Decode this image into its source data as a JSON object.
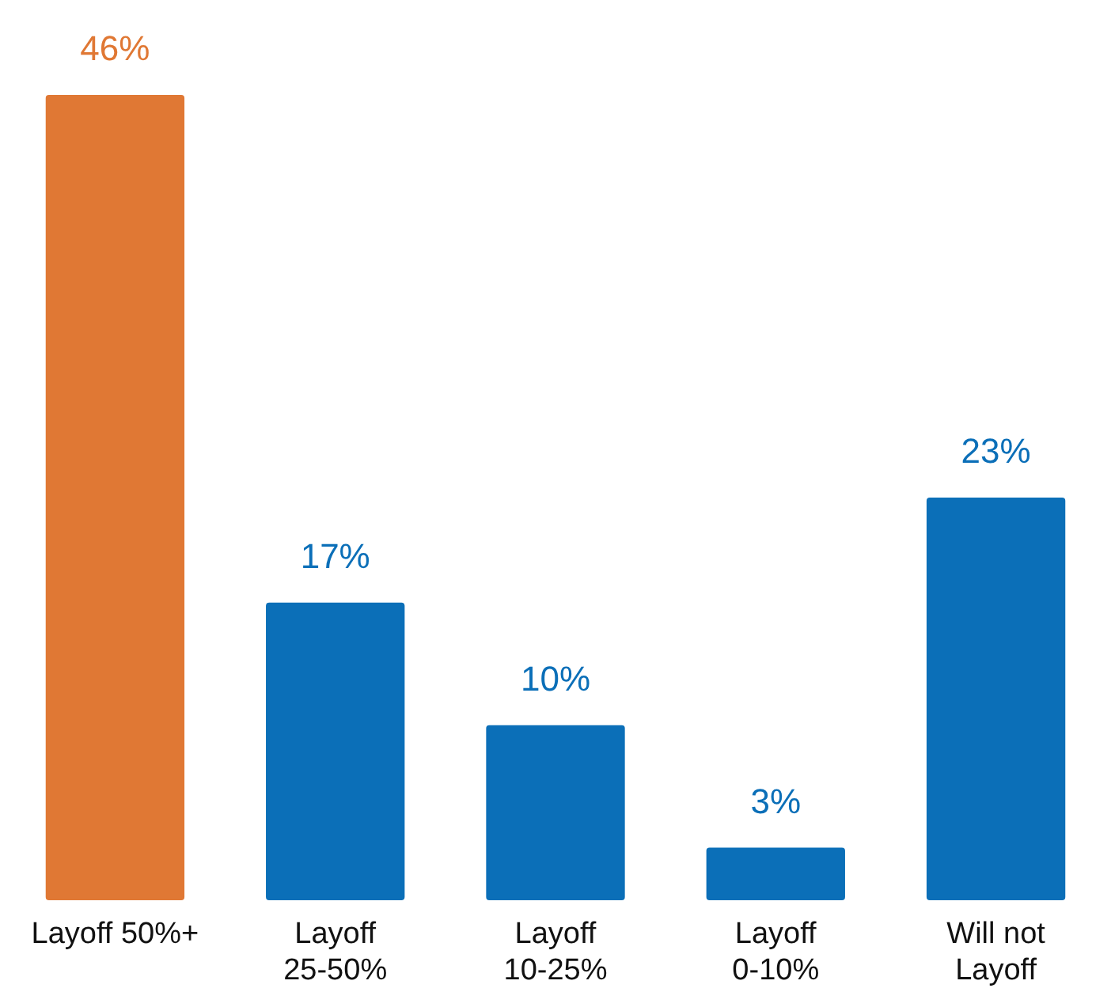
{
  "chart_data": {
    "type": "bar",
    "categories": [
      "Layoff 50%+",
      "Layoff\n25-50%",
      "Layoff\n10-25%",
      "Layoff\n0-10%",
      "Will not\nLayoff"
    ],
    "values": [
      46,
      17,
      10,
      3,
      23
    ],
    "colors": [
      "#e07834",
      "#0b6fb8",
      "#0b6fb8",
      "#0b6fb8",
      "#0b6fb8"
    ],
    "value_labels": [
      "46%",
      "17%",
      "10%",
      "3%",
      "23%"
    ]
  }
}
